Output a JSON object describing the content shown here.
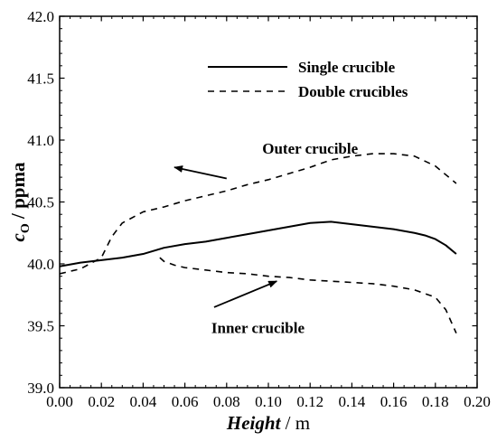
{
  "chart_data": {
    "type": "line",
    "xlabel": {
      "main": "Height",
      "unit": " / m"
    },
    "ylabel": {
      "main": "c",
      "sub": "O",
      "unit": " / ppma"
    },
    "xlim": [
      0.0,
      0.2
    ],
    "ylim": [
      39.0,
      42.0
    ],
    "x_ticks": [
      "0.00",
      "0.02",
      "0.04",
      "0.06",
      "0.08",
      "0.10",
      "0.12",
      "0.14",
      "0.16",
      "0.18",
      "0.20"
    ],
    "y_ticks": [
      "39.0",
      "39.5",
      "40.0",
      "40.5",
      "41.0",
      "41.5",
      "42.0"
    ],
    "grid": false,
    "legend_position": "top-right",
    "series": [
      {
        "name": "Single crucible",
        "style": "solid",
        "color": "#000000",
        "points": [
          [
            0.0,
            39.98
          ],
          [
            0.01,
            40.01
          ],
          [
            0.02,
            40.03
          ],
          [
            0.03,
            40.05
          ],
          [
            0.04,
            40.08
          ],
          [
            0.05,
            40.13
          ],
          [
            0.06,
            40.16
          ],
          [
            0.07,
            40.18
          ],
          [
            0.08,
            40.21
          ],
          [
            0.09,
            40.24
          ],
          [
            0.1,
            40.27
          ],
          [
            0.11,
            40.3
          ],
          [
            0.12,
            40.33
          ],
          [
            0.13,
            40.34
          ],
          [
            0.14,
            40.32
          ],
          [
            0.15,
            40.3
          ],
          [
            0.16,
            40.28
          ],
          [
            0.17,
            40.25
          ],
          [
            0.175,
            40.23
          ],
          [
            0.18,
            40.2
          ],
          [
            0.185,
            40.15
          ],
          [
            0.19,
            40.08
          ]
        ]
      },
      {
        "name": "Double crucibles",
        "style": "dashed",
        "color": "#000000",
        "points": [
          [
            0.0,
            39.92
          ],
          [
            0.01,
            39.96
          ],
          [
            0.02,
            40.05
          ],
          [
            0.025,
            40.22
          ],
          [
            0.03,
            40.33
          ],
          [
            0.04,
            40.42
          ],
          [
            0.05,
            40.46
          ],
          [
            0.06,
            40.51
          ],
          [
            0.07,
            40.55
          ],
          [
            0.08,
            40.59
          ],
          [
            0.09,
            40.64
          ],
          [
            0.1,
            40.68
          ],
          [
            0.11,
            40.73
          ],
          [
            0.12,
            40.78
          ],
          [
            0.13,
            40.84
          ],
          [
            0.14,
            40.87
          ],
          [
            0.15,
            40.89
          ],
          [
            0.16,
            40.89
          ],
          [
            0.17,
            40.87
          ],
          [
            0.18,
            40.79
          ],
          [
            0.19,
            40.65
          ]
        ]
      },
      {
        "style": "dashed",
        "color": "#000000",
        "points": [
          [
            0.048,
            40.05
          ],
          [
            0.05,
            40.02
          ],
          [
            0.055,
            39.99
          ],
          [
            0.06,
            39.97
          ],
          [
            0.07,
            39.95
          ],
          [
            0.08,
            39.93
          ],
          [
            0.09,
            39.92
          ],
          [
            0.1,
            39.9
          ],
          [
            0.11,
            39.89
          ],
          [
            0.12,
            39.87
          ],
          [
            0.13,
            39.86
          ],
          [
            0.14,
            39.85
          ],
          [
            0.15,
            39.84
          ],
          [
            0.16,
            39.82
          ],
          [
            0.17,
            39.79
          ],
          [
            0.18,
            39.73
          ],
          [
            0.185,
            39.63
          ],
          [
            0.19,
            39.44
          ]
        ]
      }
    ],
    "annotations": [
      {
        "text": "Outer crucible",
        "x": 0.12,
        "y": 40.89,
        "arrow_from": [
          0.08,
          40.69
        ],
        "arrow_to": [
          0.055,
          40.78
        ]
      },
      {
        "text": "Inner crucible",
        "x": 0.095,
        "y": 39.44,
        "arrow_from": [
          0.074,
          39.65
        ],
        "arrow_to": [
          0.104,
          39.86
        ]
      }
    ]
  }
}
